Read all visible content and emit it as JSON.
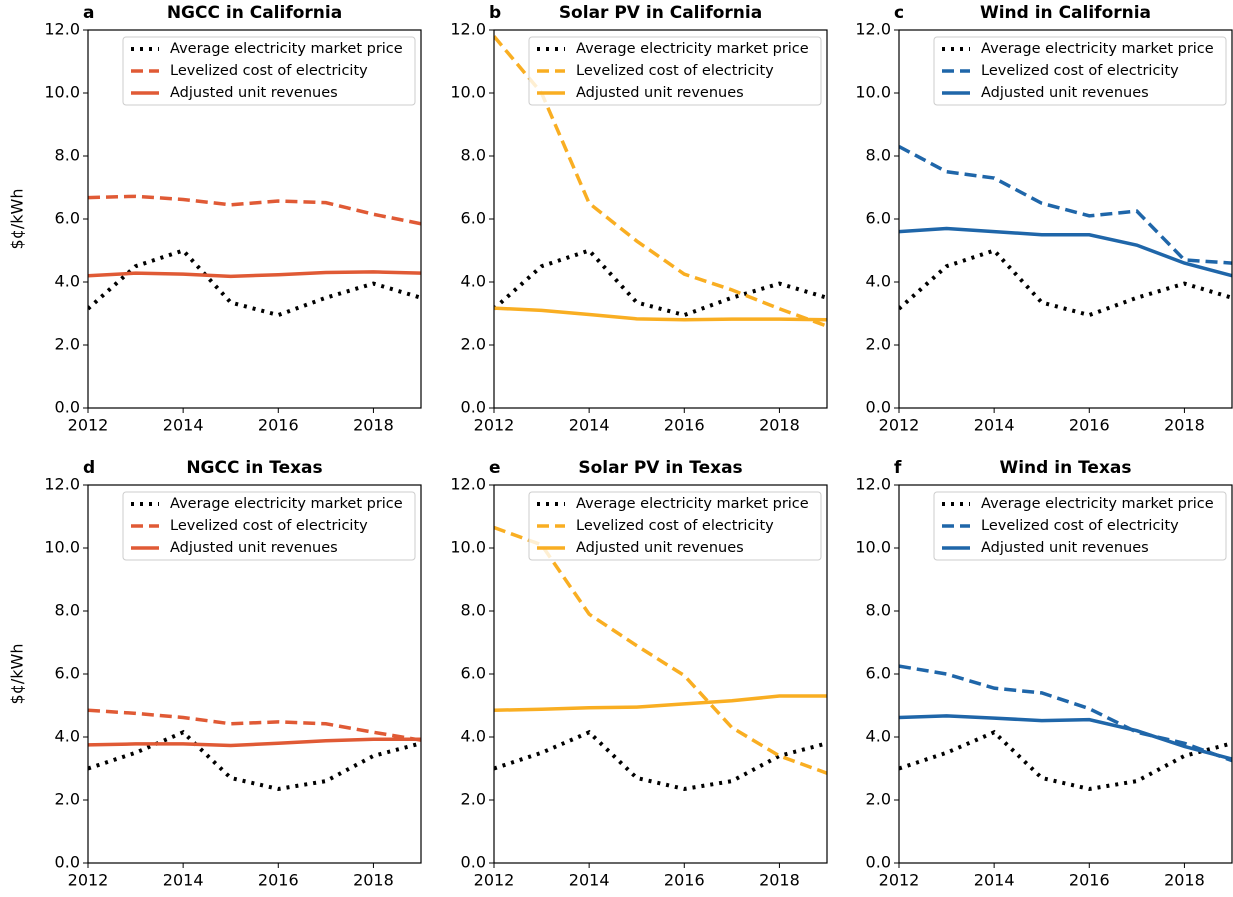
{
  "chart_data": [
    {
      "type": "line",
      "panel_label": "a",
      "title": "NGCC in California",
      "ylabel": "$¢/kWh",
      "x": [
        2012,
        2013,
        2014,
        2015,
        2016,
        2017,
        2018,
        2019
      ],
      "xlim": [
        2012,
        2019
      ],
      "xticks": [
        2012,
        2014,
        2016,
        2018
      ],
      "ylim": [
        0,
        12
      ],
      "yticks": [
        {
          "value": 0,
          "label": "0.0"
        },
        {
          "value": 2,
          "label": "2.0"
        },
        {
          "value": 4,
          "label": "4.0"
        },
        {
          "value": 6,
          "label": "6.0"
        },
        {
          "value": 8,
          "label": "8.0"
        },
        {
          "value": 10,
          "label": "10.0"
        },
        {
          "value": 12,
          "label": "12.0"
        }
      ],
      "legend": "upper right",
      "series": [
        {
          "name": "Average electricity market price",
          "color": "#000000",
          "style": "dotted",
          "values": [
            3.15,
            4.5,
            5.0,
            3.35,
            2.95,
            3.5,
            3.95,
            3.5
          ]
        },
        {
          "name": "Levelized cost of electricity",
          "color": "#e05a35",
          "style": "dashed",
          "values": [
            6.68,
            6.72,
            6.62,
            6.45,
            6.57,
            6.52,
            6.15,
            5.85
          ]
        },
        {
          "name": "Adjusted unit revenues",
          "color": "#e05a35",
          "style": "solid",
          "values": [
            4.2,
            4.28,
            4.25,
            4.18,
            4.23,
            4.3,
            4.32,
            4.28
          ]
        }
      ]
    },
    {
      "type": "line",
      "panel_label": "b",
      "title": "Solar PV in California",
      "x": [
        2012,
        2013,
        2014,
        2015,
        2016,
        2017,
        2018,
        2019
      ],
      "xlim": [
        2012,
        2019
      ],
      "xticks": [
        2012,
        2014,
        2016,
        2018
      ],
      "ylim": [
        0,
        12
      ],
      "yticks": [
        {
          "value": 0,
          "label": "0.0"
        },
        {
          "value": 2,
          "label": "2.0"
        },
        {
          "value": 4,
          "label": "4.0"
        },
        {
          "value": 6,
          "label": "6.0"
        },
        {
          "value": 8,
          "label": "8.0"
        },
        {
          "value": 10,
          "label": "10.0"
        },
        {
          "value": 12,
          "label": "12.0"
        }
      ],
      "legend": "upper right",
      "series": [
        {
          "name": "Average electricity market price",
          "color": "#000000",
          "style": "dotted",
          "values": [
            3.15,
            4.5,
            5.0,
            3.35,
            2.95,
            3.5,
            3.95,
            3.5
          ]
        },
        {
          "name": "Levelized cost of electricity",
          "color": "#f9ae22",
          "style": "dashed",
          "values": [
            11.8,
            10.0,
            6.5,
            5.3,
            4.25,
            3.75,
            3.15,
            2.6
          ]
        },
        {
          "name": "Adjusted unit revenues",
          "color": "#f9ae22",
          "style": "solid",
          "values": [
            3.17,
            3.1,
            2.97,
            2.83,
            2.8,
            2.82,
            2.82,
            2.8
          ]
        }
      ]
    },
    {
      "type": "line",
      "panel_label": "c",
      "title": "Wind in California",
      "x": [
        2012,
        2013,
        2014,
        2015,
        2016,
        2017,
        2018,
        2019
      ],
      "xlim": [
        2012,
        2019
      ],
      "xticks": [
        2012,
        2014,
        2016,
        2018
      ],
      "ylim": [
        0,
        12
      ],
      "yticks": [
        {
          "value": 0,
          "label": "0.0"
        },
        {
          "value": 2,
          "label": "2.0"
        },
        {
          "value": 4,
          "label": "4.0"
        },
        {
          "value": 6,
          "label": "6.0"
        },
        {
          "value": 8,
          "label": "8.0"
        },
        {
          "value": 10,
          "label": "10.0"
        },
        {
          "value": 12,
          "label": "12.0"
        }
      ],
      "legend": "upper right",
      "series": [
        {
          "name": "Average electricity market price",
          "color": "#000000",
          "style": "dotted",
          "values": [
            3.15,
            4.5,
            5.0,
            3.35,
            2.95,
            3.5,
            3.95,
            3.5
          ]
        },
        {
          "name": "Levelized cost of electricity",
          "color": "#1f66a9",
          "style": "dashed",
          "values": [
            8.3,
            7.5,
            7.3,
            6.5,
            6.1,
            6.25,
            4.7,
            4.6
          ]
        },
        {
          "name": "Adjusted unit revenues",
          "color": "#1f66a9",
          "style": "solid",
          "values": [
            5.6,
            5.7,
            5.6,
            5.5,
            5.5,
            5.17,
            4.6,
            4.2
          ]
        }
      ]
    },
    {
      "type": "line",
      "panel_label": "d",
      "title": "NGCC in Texas",
      "ylabel": "$¢/kWh",
      "x": [
        2012,
        2013,
        2014,
        2015,
        2016,
        2017,
        2018,
        2019
      ],
      "xlim": [
        2012,
        2019
      ],
      "xticks": [
        2012,
        2014,
        2016,
        2018
      ],
      "ylim": [
        0,
        12
      ],
      "yticks": [
        {
          "value": 0,
          "label": "0.0"
        },
        {
          "value": 2,
          "label": "2.0"
        },
        {
          "value": 4,
          "label": "4.0"
        },
        {
          "value": 6,
          "label": "6.0"
        },
        {
          "value": 8,
          "label": "8.0"
        },
        {
          "value": 10,
          "label": "10.0"
        },
        {
          "value": 12,
          "label": "12.0"
        }
      ],
      "legend": "upper right",
      "series": [
        {
          "name": "Average electricity market price",
          "color": "#000000",
          "style": "dotted",
          "values": [
            3.0,
            3.5,
            4.15,
            2.7,
            2.35,
            2.6,
            3.4,
            3.8
          ]
        },
        {
          "name": "Levelized cost of electricity",
          "color": "#e05a35",
          "style": "dashed",
          "values": [
            4.85,
            4.75,
            4.62,
            4.42,
            4.48,
            4.42,
            4.15,
            3.9
          ]
        },
        {
          "name": "Adjusted unit revenues",
          "color": "#e05a35",
          "style": "solid",
          "values": [
            3.75,
            3.78,
            3.78,
            3.73,
            3.8,
            3.88,
            3.93,
            3.93
          ]
        }
      ]
    },
    {
      "type": "line",
      "panel_label": "e",
      "title": "Solar PV in Texas",
      "x": [
        2012,
        2013,
        2014,
        2015,
        2016,
        2017,
        2018,
        2019
      ],
      "xlim": [
        2012,
        2019
      ],
      "xticks": [
        2012,
        2014,
        2016,
        2018
      ],
      "ylim": [
        0,
        12
      ],
      "yticks": [
        {
          "value": 0,
          "label": "0.0"
        },
        {
          "value": 2,
          "label": "2.0"
        },
        {
          "value": 4,
          "label": "4.0"
        },
        {
          "value": 6,
          "label": "6.0"
        },
        {
          "value": 8,
          "label": "8.0"
        },
        {
          "value": 10,
          "label": "10.0"
        },
        {
          "value": 12,
          "label": "12.0"
        }
      ],
      "legend": "upper right",
      "series": [
        {
          "name": "Average electricity market price",
          "color": "#000000",
          "style": "dotted",
          "values": [
            3.0,
            3.5,
            4.15,
            2.7,
            2.35,
            2.6,
            3.4,
            3.8
          ]
        },
        {
          "name": "Levelized cost of electricity",
          "color": "#f9ae22",
          "style": "dashed",
          "values": [
            10.65,
            10.1,
            7.9,
            6.9,
            5.95,
            4.3,
            3.4,
            2.85
          ]
        },
        {
          "name": "Adjusted unit revenues",
          "color": "#f9ae22",
          "style": "solid",
          "values": [
            4.85,
            4.88,
            4.93,
            4.95,
            5.05,
            5.15,
            5.3,
            5.3
          ]
        }
      ]
    },
    {
      "type": "line",
      "panel_label": "f",
      "title": "Wind in Texas",
      "x": [
        2012,
        2013,
        2014,
        2015,
        2016,
        2017,
        2018,
        2019
      ],
      "xlim": [
        2012,
        2019
      ],
      "xticks": [
        2012,
        2014,
        2016,
        2018
      ],
      "ylim": [
        0,
        12
      ],
      "yticks": [
        {
          "value": 0,
          "label": "0.0"
        },
        {
          "value": 2,
          "label": "2.0"
        },
        {
          "value": 4,
          "label": "4.0"
        },
        {
          "value": 6,
          "label": "6.0"
        },
        {
          "value": 8,
          "label": "8.0"
        },
        {
          "value": 10,
          "label": "10.0"
        },
        {
          "value": 12,
          "label": "12.0"
        }
      ],
      "legend": "upper right",
      "series": [
        {
          "name": "Average electricity market price",
          "color": "#000000",
          "style": "dotted",
          "values": [
            3.0,
            3.5,
            4.15,
            2.7,
            2.35,
            2.6,
            3.4,
            3.8
          ]
        },
        {
          "name": "Levelized cost of electricity",
          "color": "#1f66a9",
          "style": "dashed",
          "values": [
            6.25,
            6.0,
            5.55,
            5.4,
            4.9,
            4.15,
            3.8,
            3.25
          ]
        },
        {
          "name": "Adjusted unit revenues",
          "color": "#1f66a9",
          "style": "solid",
          "values": [
            4.62,
            4.67,
            4.6,
            4.52,
            4.55,
            4.2,
            3.7,
            3.3
          ]
        }
      ]
    }
  ]
}
